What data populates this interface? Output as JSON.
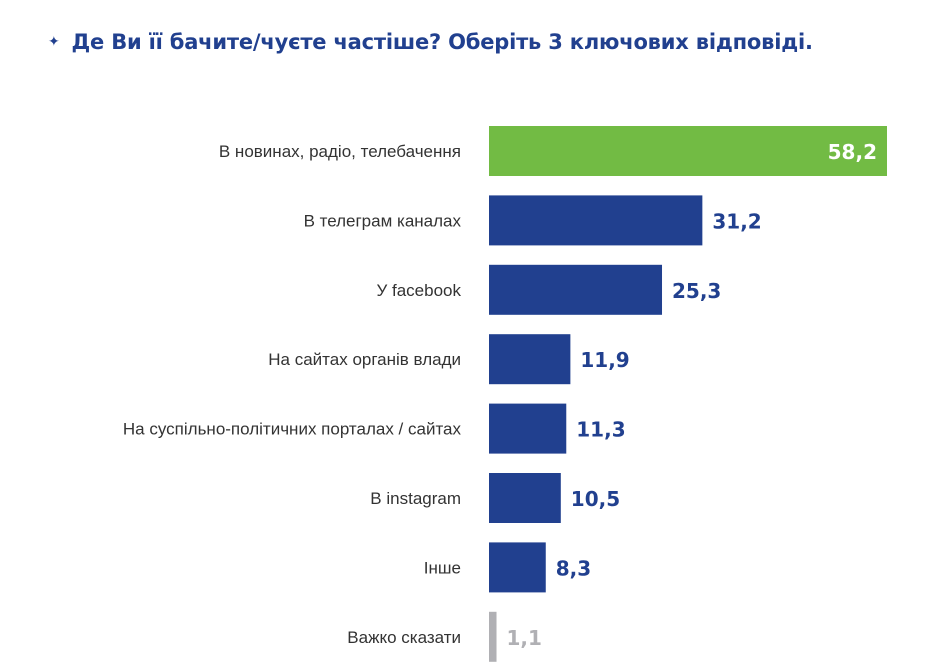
{
  "title": "Де Ви її бачите/чуєте частіше? Оберіть 3 ключових відповіді.",
  "title_icon": "diamond-bullet-icon",
  "colors": {
    "highlight": "#72bb44",
    "bar": "#21408f",
    "neutral": "#b0b0b4",
    "title": "#21408f"
  },
  "chart_data": {
    "type": "bar",
    "orientation": "horizontal",
    "title": "Де Ви її бачите/чуєте частіше? Оберіть 3 ключових відповіді.",
    "categories": [
      "В новинах, радіо, телебачення",
      "В телеграм каналах",
      "У facebook",
      "На сайтах органів влади",
      "На суспільно-політичних порталах / сайтах",
      "В instagram",
      "Інше",
      "Важко сказати"
    ],
    "values": [
      58.2,
      31.2,
      25.3,
      11.9,
      11.3,
      10.5,
      8.3,
      1.1
    ],
    "value_labels": [
      "58,2",
      "31,2",
      "25,3",
      "11,9",
      "11,3",
      "10,5",
      "8,3",
      "1,1"
    ],
    "bar_colors": [
      "#72bb44",
      "#21408f",
      "#21408f",
      "#21408f",
      "#21408f",
      "#21408f",
      "#21408f",
      "#b0b0b4"
    ],
    "xlim": [
      0,
      58.2
    ],
    "grid": false,
    "legend": "none"
  }
}
